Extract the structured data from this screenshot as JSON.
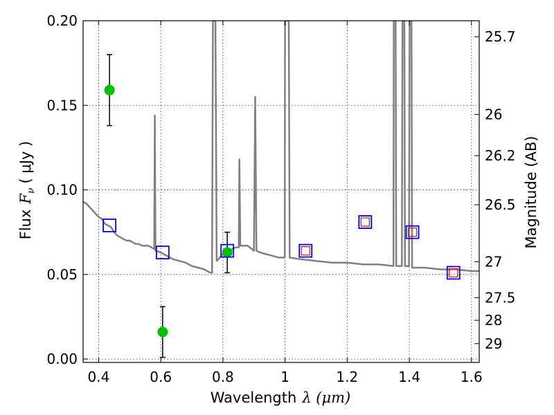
{
  "chart_data": {
    "type": "scatter",
    "xlabel": "Wavelength",
    "xlabel_symbol": "λ (μm)",
    "ylabel": "Flux",
    "ylabel_symbol": "F",
    "ylabel_sub": "ν",
    "ylabel_unit": "( μJy )",
    "y2label": "Magnitude (AB)",
    "xlim": [
      0.35,
      1.625
    ],
    "ylim": [
      -0.002,
      0.2
    ],
    "grid": true,
    "x_ticks": [
      0.4,
      0.6,
      0.8,
      1.0,
      1.2,
      1.4,
      1.6
    ],
    "x_tick_labels": [
      "0.4",
      "0.6",
      "0.8",
      "1",
      "1.2",
      "1.4",
      "1.6"
    ],
    "y_ticks": [
      0.0,
      0.05,
      0.1,
      0.15,
      0.2
    ],
    "y_tick_labels": [
      "0.00",
      "0.05",
      "0.10",
      "0.15",
      "0.20"
    ],
    "y2_ticks": [
      25.7,
      26,
      26.2,
      26.5,
      27,
      27.5,
      28,
      29
    ],
    "y2_tick_labels": [
      "25.7",
      "26",
      "26.2",
      "26.5",
      "27",
      "27.5",
      "28",
      "29"
    ],
    "series": [
      {
        "type": "line",
        "color": "#808080",
        "points": [
          [
            0.35,
            0.093
          ],
          [
            0.36,
            0.092
          ],
          [
            0.37,
            0.09
          ],
          [
            0.38,
            0.088
          ],
          [
            0.39,
            0.086
          ],
          [
            0.4,
            0.084
          ],
          [
            0.41,
            0.083
          ],
          [
            0.42,
            0.08
          ],
          [
            0.43,
            0.079
          ],
          [
            0.44,
            0.078
          ],
          [
            0.45,
            0.075
          ],
          [
            0.46,
            0.073
          ],
          [
            0.47,
            0.072
          ],
          [
            0.48,
            0.071
          ],
          [
            0.49,
            0.07
          ],
          [
            0.5,
            0.07
          ],
          [
            0.51,
            0.069
          ],
          [
            0.52,
            0.068
          ],
          [
            0.53,
            0.068
          ],
          [
            0.54,
            0.067
          ],
          [
            0.55,
            0.067
          ],
          [
            0.56,
            0.067
          ],
          [
            0.57,
            0.066
          ],
          [
            0.579,
            0.065
          ],
          [
            0.581,
            0.144
          ],
          [
            0.583,
            0.064
          ],
          [
            0.6,
            0.063
          ],
          [
            0.62,
            0.061
          ],
          [
            0.64,
            0.059
          ],
          [
            0.66,
            0.058
          ],
          [
            0.68,
            0.057
          ],
          [
            0.7,
            0.055
          ],
          [
            0.72,
            0.054
          ],
          [
            0.74,
            0.053
          ],
          [
            0.76,
            0.051
          ],
          [
            0.765,
            0.051
          ],
          [
            0.768,
            0.2
          ],
          [
            0.776,
            0.2
          ],
          [
            0.78,
            0.058
          ],
          [
            0.8,
            0.062
          ],
          [
            0.82,
            0.064
          ],
          [
            0.84,
            0.066
          ],
          [
            0.851,
            0.066
          ],
          [
            0.853,
            0.118
          ],
          [
            0.856,
            0.067
          ],
          [
            0.88,
            0.067
          ],
          [
            0.9,
            0.064
          ],
          [
            0.904,
            0.155
          ],
          [
            0.908,
            0.064
          ],
          [
            0.92,
            0.063
          ],
          [
            0.94,
            0.062
          ],
          [
            0.96,
            0.061
          ],
          [
            0.98,
            0.06
          ],
          [
            0.999,
            0.06
          ],
          [
            1.0,
            0.2
          ],
          [
            1.012,
            0.2
          ],
          [
            1.015,
            0.06
          ],
          [
            1.05,
            0.059
          ],
          [
            1.1,
            0.058
          ],
          [
            1.15,
            0.057
          ],
          [
            1.2,
            0.057
          ],
          [
            1.25,
            0.056
          ],
          [
            1.3,
            0.056
          ],
          [
            1.349,
            0.055
          ],
          [
            1.35,
            0.2
          ],
          [
            1.356,
            0.2
          ],
          [
            1.358,
            0.055
          ],
          [
            1.376,
            0.055
          ],
          [
            1.378,
            0.2
          ],
          [
            1.384,
            0.2
          ],
          [
            1.386,
            0.055
          ],
          [
            1.399,
            0.055
          ],
          [
            1.401,
            0.2
          ],
          [
            1.407,
            0.2
          ],
          [
            1.409,
            0.054
          ],
          [
            1.45,
            0.054
          ],
          [
            1.5,
            0.053
          ],
          [
            1.55,
            0.053
          ],
          [
            1.6,
            0.052
          ],
          [
            1.625,
            0.052
          ]
        ]
      },
      {
        "type": "scatter",
        "marker": "circle",
        "color": "#00c000",
        "points": [
          {
            "x": 0.435,
            "y": 0.159,
            "err": 0.021
          },
          {
            "x": 0.606,
            "y": 0.016,
            "err": 0.015
          },
          {
            "x": 0.814,
            "y": 0.063,
            "err": 0.012
          }
        ]
      },
      {
        "type": "scatter",
        "marker": "square",
        "color": "#0000ff",
        "points": [
          {
            "x": 0.435,
            "y": 0.079
          },
          {
            "x": 0.606,
            "y": 0.063
          },
          {
            "x": 0.814,
            "y": 0.064
          },
          {
            "x": 1.066,
            "y": 0.064
          },
          {
            "x": 1.258,
            "y": 0.081
          },
          {
            "x": 1.41,
            "y": 0.075
          },
          {
            "x": 1.542,
            "y": 0.051
          }
        ]
      },
      {
        "type": "scatter",
        "marker": "square-small",
        "color": "#ff0000",
        "points": [
          {
            "x": 1.066,
            "y": 0.064
          },
          {
            "x": 1.258,
            "y": 0.081
          },
          {
            "x": 1.41,
            "y": 0.075
          },
          {
            "x": 1.542,
            "y": 0.051
          }
        ]
      }
    ]
  }
}
